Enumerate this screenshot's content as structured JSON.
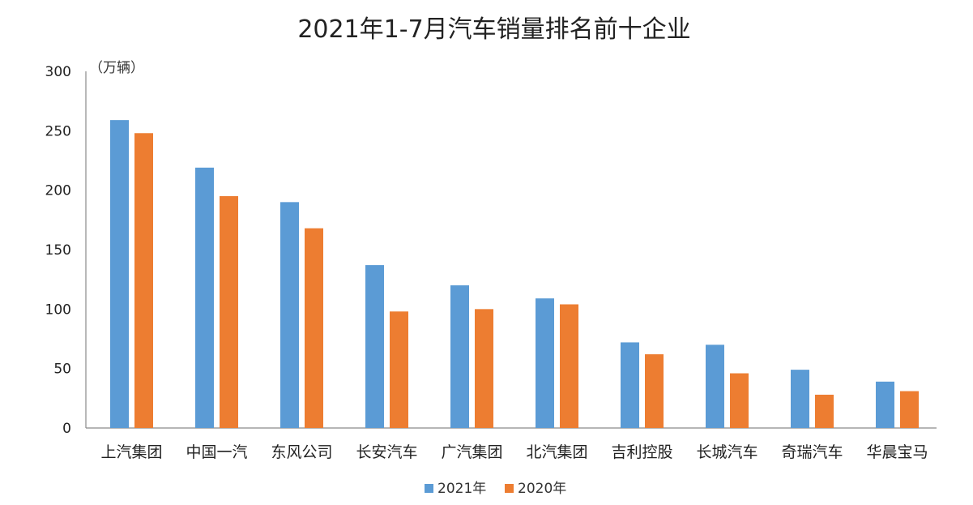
{
  "chart_data": {
    "type": "bar",
    "title": "2021年1-7月汽车销量排名前十企业",
    "unit_label": "（万辆）",
    "xlabel": "",
    "ylabel": "",
    "ylim": [
      0,
      300
    ],
    "yticks": [
      0,
      50,
      100,
      150,
      200,
      250,
      300
    ],
    "categories": [
      "上汽集团",
      "中国一汽",
      "东风公司",
      "长安汽车",
      "广汽集团",
      "北汽集团",
      "吉利控股",
      "长城汽车",
      "奇瑞汽车",
      "华晨宝马"
    ],
    "series": [
      {
        "name": "2021年",
        "color": "#5b9bd5",
        "values": [
          259,
          219,
          190,
          137,
          120,
          109,
          72,
          70,
          49,
          39
        ]
      },
      {
        "name": "2020年",
        "color": "#ed7d31",
        "values": [
          248,
          195,
          168,
          98,
          100,
          104,
          62,
          46,
          28,
          31
        ]
      }
    ],
    "grid": false,
    "legend_position": "bottom"
  }
}
